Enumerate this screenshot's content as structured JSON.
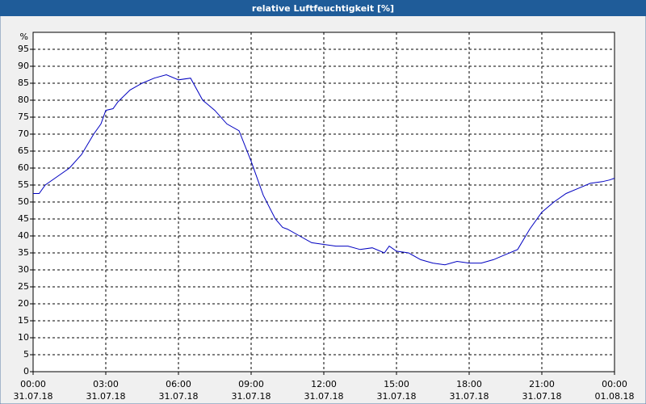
{
  "chart_data": {
    "type": "line",
    "title": "relative Luftfeuchtigkeit [%]",
    "y_label": "%",
    "x": [
      0,
      0.25,
      0.5,
      1,
      1.5,
      2,
      2.5,
      2.8,
      3,
      3.3,
      3.5,
      4,
      4.5,
      5,
      5.5,
      6,
      6.5,
      7,
      7.5,
      8,
      8.5,
      9,
      9.5,
      10,
      10.3,
      10.5,
      11,
      11.5,
      12,
      12.5,
      13,
      13.5,
      14,
      14.5,
      14.7,
      15,
      15.5,
      16,
      16.5,
      17,
      17.5,
      18,
      18.5,
      19,
      19.5,
      20,
      20.5,
      21,
      21.5,
      22,
      22.5,
      23,
      23.5,
      23.8,
      24
    ],
    "series": [
      {
        "color": "#0000c0",
        "values": [
          52.5,
          52.5,
          55,
          57.5,
          60,
          64,
          70,
          73,
          77,
          77.5,
          79.5,
          83,
          85,
          86.5,
          87.5,
          86,
          86.5,
          80,
          77,
          73,
          71,
          62,
          52,
          45,
          42.5,
          42,
          40,
          38,
          37.5,
          37,
          37,
          36,
          36.5,
          35,
          37,
          35.5,
          35,
          33,
          32,
          31.5,
          32.5,
          32,
          32,
          33,
          34.5,
          36,
          42,
          47,
          50,
          52.5,
          54,
          55.5,
          56,
          56.5,
          57
        ]
      }
    ],
    "xlim": [
      0,
      24
    ],
    "xticks": [
      {
        "value": 0,
        "label": "00:00",
        "date": "31.07.18"
      },
      {
        "value": 3,
        "label": "03:00",
        "date": "31.07.18"
      },
      {
        "value": 6,
        "label": "06:00",
        "date": "31.07.18"
      },
      {
        "value": 9,
        "label": "09:00",
        "date": "31.07.18"
      },
      {
        "value": 12,
        "label": "12:00",
        "date": "31.07.18"
      },
      {
        "value": 15,
        "label": "15:00",
        "date": "31.07.18"
      },
      {
        "value": 18,
        "label": "18:00",
        "date": "31.07.18"
      },
      {
        "value": 21,
        "label": "21:00",
        "date": "31.07.18"
      },
      {
        "value": 24,
        "label": "00:00",
        "date": "01.08.18"
      }
    ],
    "ylim": [
      0,
      100
    ],
    "yticks": [
      0,
      5,
      10,
      15,
      20,
      25,
      30,
      35,
      40,
      45,
      50,
      55,
      60,
      65,
      70,
      75,
      80,
      85,
      90,
      95
    ],
    "grid": true
  }
}
